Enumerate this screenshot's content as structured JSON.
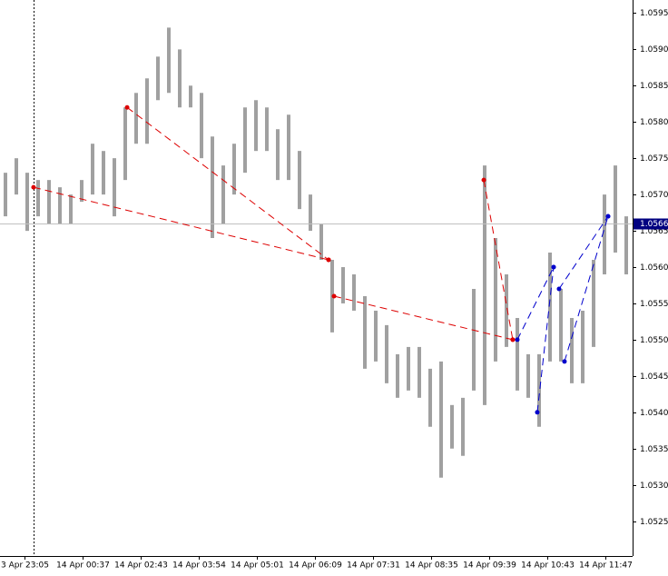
{
  "chart_data": {
    "type": "ohlc",
    "xlim": [
      0,
      58
    ],
    "ylim": [
      1.05202,
      1.05968
    ],
    "xticks": [
      {
        "value": 2.25,
        "label": "3 Apr 23:05"
      },
      {
        "value": 7.58,
        "label": "14 Apr 00:37"
      },
      {
        "value": 12.92,
        "label": "14 Apr 02:43"
      },
      {
        "value": 18.25,
        "label": "14 Apr 03:54"
      },
      {
        "value": 23.58,
        "label": "14 Apr 05:01"
      },
      {
        "value": 28.92,
        "label": "14 Apr 06:09"
      },
      {
        "value": 34.25,
        "label": "14 Apr 07:31"
      },
      {
        "value": 39.58,
        "label": "14 Apr 08:35"
      },
      {
        "value": 44.92,
        "label": "14 Apr 09:39"
      },
      {
        "value": 50.25,
        "label": "14 Apr 10:43"
      },
      {
        "value": 55.58,
        "label": "14 Apr 11:47"
      }
    ],
    "yticks": [
      1.0525,
      {
        "value": 1.053,
        "label": "1.0530"
      },
      1.0535,
      {
        "value": 1.054,
        "label": "1.0540"
      },
      1.0545,
      {
        "value": 1.055,
        "label": "1.0550"
      },
      1.0555,
      {
        "value": 1.056,
        "label": "1.0560"
      },
      1.0565,
      {
        "value": 1.057,
        "label": "1.0570"
      },
      1.0575,
      {
        "value": 1.058,
        "label": "1.0580"
      },
      1.0585,
      {
        "value": 1.059,
        "label": "1.0590"
      },
      1.0595
    ],
    "bid": 1.0566,
    "separator_x": 3.08,
    "bars": {
      "color": "#a0a0a0",
      "x": [
        0.5,
        1.5,
        2.5,
        3.5,
        4.5,
        5.5,
        6.5,
        7.5,
        8.5,
        9.5,
        10.5,
        11.5,
        12.5,
        13.5,
        14.5,
        15.5,
        16.5,
        17.5,
        18.5,
        19.5,
        20.5,
        21.5,
        22.5,
        23.5,
        24.5,
        25.5,
        26.5,
        27.5,
        28.5,
        29.5,
        30.5,
        31.5,
        32.5,
        33.5,
        34.5,
        35.5,
        36.5,
        37.5,
        38.5,
        39.5,
        40.5,
        41.5,
        42.5,
        43.5,
        44.5,
        45.5,
        46.5,
        47.5,
        48.5,
        49.5,
        50.5,
        51.5,
        52.5,
        53.5,
        54.5,
        55.5,
        56.5,
        57.5
      ],
      "high": [
        1.0573,
        1.0575,
        1.0573,
        1.0572,
        1.0572,
        1.0571,
        1.057,
        1.0572,
        1.0577,
        1.0576,
        1.0575,
        1.0582,
        1.0584,
        1.0586,
        1.0589,
        1.0593,
        1.059,
        1.0585,
        1.0584,
        1.0578,
        1.0574,
        1.0577,
        1.0582,
        1.0583,
        1.0582,
        1.0579,
        1.0581,
        1.0576,
        1.057,
        1.0566,
        1.0561,
        1.056,
        1.0559,
        1.0556,
        1.0554,
        1.0552,
        1.0548,
        1.0549,
        1.0549,
        1.0546,
        1.0547,
        1.0541,
        1.0542,
        1.0557,
        1.0574,
        1.0564,
        1.0559,
        1.0553,
        1.0548,
        1.0548,
        1.0562,
        1.0557,
        1.0553,
        1.0554,
        1.0561,
        1.057,
        1.0574,
        1.0567
      ],
      "low": [
        1.0567,
        1.057,
        1.0565,
        1.0567,
        1.0566,
        1.0566,
        1.0566,
        1.0569,
        1.057,
        1.057,
        1.0567,
        1.0572,
        1.0577,
        1.0577,
        1.0583,
        1.0584,
        1.0582,
        1.0582,
        1.0575,
        1.0564,
        1.0566,
        1.057,
        1.0573,
        1.0576,
        1.0576,
        1.0572,
        1.0572,
        1.0568,
        1.0565,
        1.0561,
        1.0551,
        1.0555,
        1.0554,
        1.0546,
        1.0547,
        1.0544,
        1.0542,
        1.0543,
        1.0542,
        1.0538,
        1.0531,
        1.0535,
        1.0534,
        1.0543,
        1.0541,
        1.0547,
        1.0549,
        1.0543,
        1.0542,
        1.0538,
        1.0547,
        1.0547,
        1.0544,
        1.0544,
        1.0549,
        1.0559,
        1.0562,
        1.0559
      ]
    },
    "trades": [
      {
        "color": "#dd0000",
        "x": [
          3.08,
          30.17
        ],
        "y": [
          1.0571,
          1.0561
        ]
      },
      {
        "color": "#dd0000",
        "x": [
          11.67,
          30.17
        ],
        "y": [
          1.0582,
          1.0561
        ]
      },
      {
        "color": "#dd0000",
        "x": [
          30.67,
          47.08
        ],
        "y": [
          1.0556,
          1.055
        ]
      },
      {
        "color": "#dd0000",
        "x": [
          44.42,
          47.08
        ],
        "y": [
          1.0572,
          1.055
        ]
      },
      {
        "color": "#0000cc",
        "x": [
          47.5,
          50.83
        ],
        "y": [
          1.055,
          1.056
        ]
      },
      {
        "color": "#0000cc",
        "x": [
          49.33,
          50.83
        ],
        "y": [
          1.054,
          1.056
        ]
      },
      {
        "color": "#0000cc",
        "x": [
          51.33,
          55.83
        ],
        "y": [
          1.0557,
          1.0567
        ]
      },
      {
        "color": "#0000cc",
        "x": [
          51.83,
          55.83
        ],
        "y": [
          1.0547,
          1.0567
        ]
      }
    ]
  }
}
